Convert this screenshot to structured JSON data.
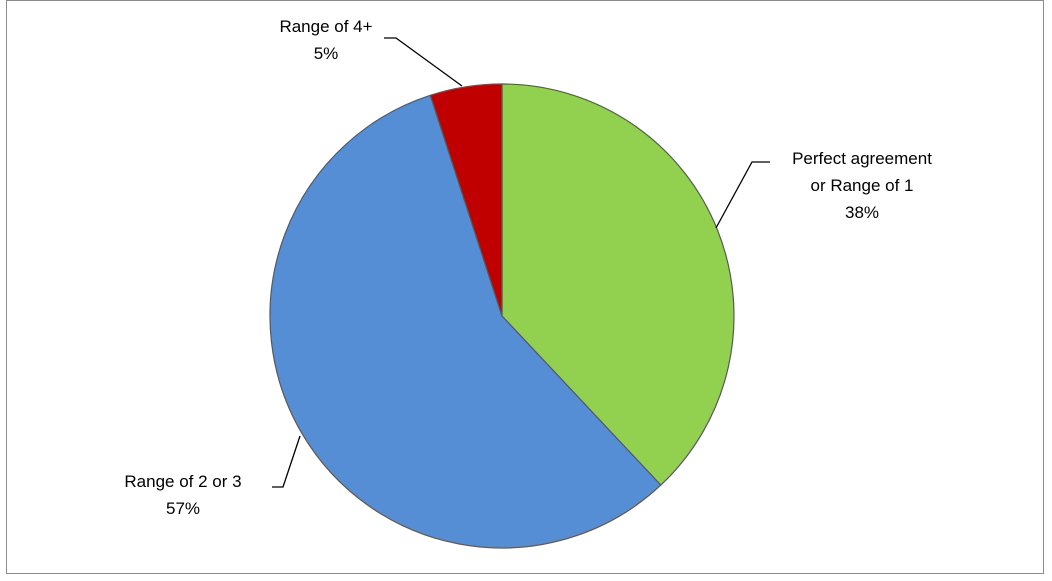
{
  "chart_data": {
    "type": "pie",
    "title": "",
    "slices": [
      {
        "label_lines": [
          "Perfect agreement",
          "or Range of 1"
        ],
        "percent_label": "38%",
        "value": 38,
        "color": "#92d050"
      },
      {
        "label_lines": [
          "Range of 2 or 3"
        ],
        "percent_label": "57%",
        "value": 57,
        "color": "#558ed5"
      },
      {
        "label_lines": [
          "Range of 4+"
        ],
        "percent_label": "5%",
        "value": 5,
        "color": "#c00000"
      }
    ],
    "start_angle": "12 o'clock",
    "direction": "clockwise",
    "legend": "none"
  }
}
